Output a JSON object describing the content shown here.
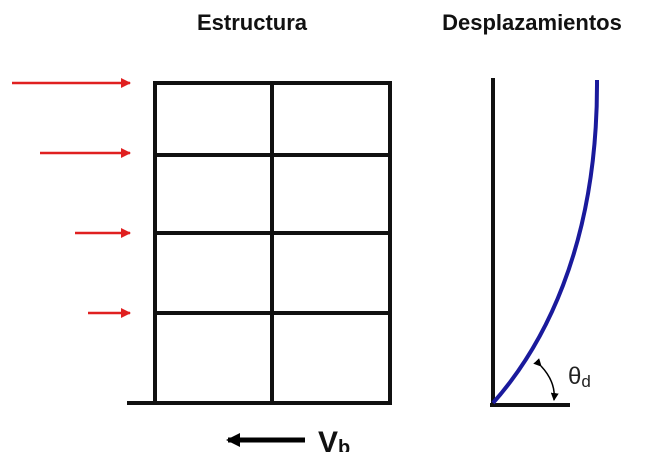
{
  "titles": {
    "structure": "Estructura",
    "displacements": "Desplazamientos"
  },
  "labels": {
    "base_shear": {
      "symbol": "V",
      "subscript": "b"
    },
    "drift_angle": {
      "symbol": "θ",
      "subscript": "d"
    }
  }
}
